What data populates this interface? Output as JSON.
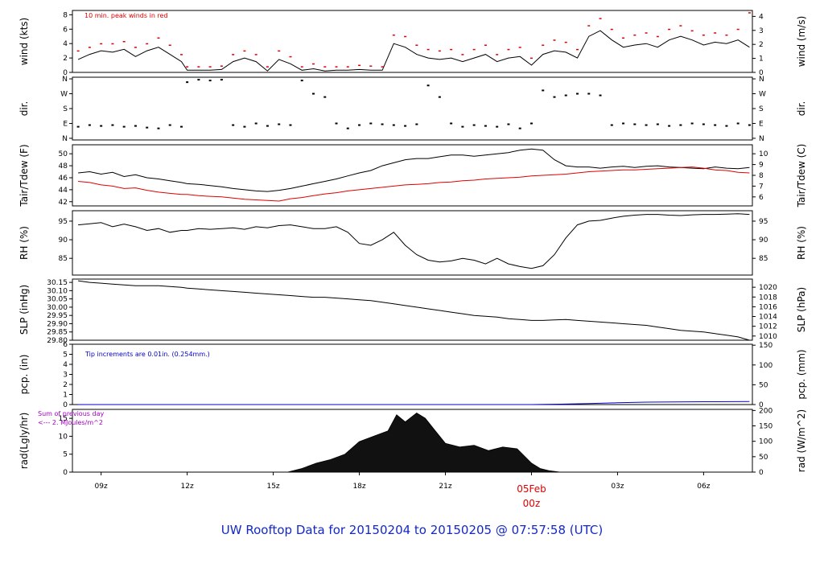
{
  "title": "UW Rooftop Data for 20150204  to  20150205 @ 07:57:58  (UTC)",
  "colors": {
    "black": "#000000",
    "red": "#e00000",
    "blue": "#0000d0",
    "purple": "#a000c0"
  },
  "x_axis": {
    "ticks": [
      "09z",
      "12z",
      "15z",
      "18z",
      "21z",
      "00z",
      "03z",
      "06z"
    ],
    "day_label": "05Feb",
    "day_sub": "00z"
  },
  "chart_data": [
    {
      "type": "line",
      "id": "wind",
      "ylabel": "wind (kts)",
      "ylabel_right": "wind (m/s)",
      "left_ticks": [
        "0",
        "2",
        "4",
        "6",
        "8"
      ],
      "right_ticks": [
        "0",
        "1",
        "2",
        "3",
        "4"
      ],
      "ylim": [
        0,
        8.6
      ],
      "annotation": "10 min. peak winds in red",
      "x": [
        8.2,
        8.6,
        9,
        9.4,
        9.8,
        10.2,
        10.6,
        11,
        11.4,
        11.8,
        12,
        12.4,
        12.8,
        13.2,
        13.6,
        14,
        14.4,
        14.8,
        15.2,
        15.6,
        16,
        16.4,
        16.8,
        17.2,
        17.6,
        18,
        18.4,
        18.8,
        19.2,
        19.6,
        20,
        20.4,
        20.8,
        21.2,
        21.6,
        22,
        22.4,
        22.8,
        23.2,
        23.6,
        24,
        24.4,
        24.8,
        25.2,
        25.6,
        26,
        26.4,
        26.8,
        27.2,
        27.6,
        28,
        28.4,
        28.8,
        29.2,
        29.6,
        30,
        30.4,
        30.8,
        31.2,
        31.6
      ],
      "series": [
        {
          "values": [
            1.8,
            2.5,
            3.0,
            2.8,
            3.2,
            2.2,
            3.0,
            3.5,
            2.5,
            1.5,
            0.3,
            0.3,
            0.3,
            0.4,
            1.5,
            2.0,
            1.5,
            0.2,
            1.8,
            1.2,
            0.3,
            0.5,
            0.2,
            0.3,
            0.3,
            0.4,
            0.3,
            0.3,
            4.0,
            3.5,
            2.5,
            2.0,
            1.8,
            2.0,
            1.5,
            2.0,
            2.5,
            1.5,
            2.0,
            2.2,
            1.0,
            2.5,
            3.0,
            2.8,
            2.0,
            5.0,
            5.8,
            4.5,
            3.5,
            3.8,
            4.0,
            3.5,
            4.5,
            5.0,
            4.5,
            3.8,
            4.2,
            4.0,
            4.5,
            3.5
          ]
        },
        {
          "values": [
            3.0,
            3.5,
            4.0,
            4.0,
            4.3,
            3.5,
            4.0,
            4.8,
            3.8,
            2.5,
            0.8,
            0.8,
            0.8,
            0.9,
            2.5,
            3.0,
            2.5,
            0.8,
            3.0,
            2.2,
            0.8,
            1.2,
            0.8,
            0.8,
            0.8,
            1.0,
            0.9,
            0.8,
            5.2,
            5.0,
            3.8,
            3.2,
            3.0,
            3.2,
            2.5,
            3.2,
            3.8,
            2.5,
            3.2,
            3.5,
            2.0,
            3.8,
            4.5,
            4.2,
            3.2,
            6.5,
            7.5,
            6.0,
            4.8,
            5.2,
            5.5,
            5.0,
            6.0,
            6.5,
            5.8,
            5.2,
            5.5,
            5.2,
            6.0,
            8.3
          ]
        }
      ]
    },
    {
      "type": "scatter",
      "id": "dir",
      "ylabel": "dir.",
      "ylabel_right": "dir.",
      "left_ticks": [
        "N",
        "E",
        "S",
        "W",
        "N"
      ],
      "right_ticks": [
        "N",
        "E",
        "S",
        "W",
        "N"
      ],
      "ylim": [
        -10,
        370
      ],
      "x": [
        8.2,
        8.6,
        9,
        9.4,
        9.8,
        10.2,
        10.6,
        11,
        11.4,
        11.8,
        12,
        12.4,
        12.8,
        13.2,
        13.6,
        14,
        14.4,
        14.8,
        15.2,
        15.6,
        16,
        16.4,
        16.8,
        17.2,
        17.6,
        18,
        18.4,
        18.8,
        19.2,
        19.6,
        20,
        20.4,
        20.8,
        21.2,
        21.6,
        22,
        22.4,
        22.8,
        23.2,
        23.6,
        24,
        24.4,
        24.8,
        25.2,
        25.6,
        26,
        26.4,
        26.8,
        27.2,
        27.6,
        28,
        28.4,
        28.8,
        29.2,
        29.6,
        30,
        30.4,
        30.8,
        31.2,
        31.6
      ],
      "series": [
        {
          "values": [
            70,
            80,
            75,
            80,
            70,
            75,
            65,
            60,
            80,
            70,
            340,
            355,
            350,
            355,
            80,
            70,
            90,
            75,
            85,
            80,
            350,
            270,
            250,
            90,
            60,
            80,
            90,
            85,
            80,
            75,
            85,
            320,
            250,
            90,
            70,
            80,
            75,
            70,
            85,
            60,
            90,
            290,
            250,
            260,
            270,
            270,
            260,
            80,
            90,
            85,
            80,
            85,
            75,
            80,
            90,
            85,
            80,
            75,
            90,
            80
          ]
        }
      ]
    },
    {
      "type": "line",
      "id": "temp",
      "ylabel": "Tair/Tdew (F)",
      "ylabel_right": "Tair/Tdew (C)",
      "left_ticks": [
        "42",
        "44",
        "46",
        "48",
        "50"
      ],
      "right_ticks": [
        "6",
        "7",
        "8",
        "9",
        "10"
      ],
      "ylim": [
        41.3,
        51.5
      ],
      "x": [
        8.2,
        8.6,
        9,
        9.4,
        9.8,
        10.2,
        10.6,
        11,
        11.4,
        11.8,
        12,
        12.4,
        12.8,
        13.2,
        13.6,
        14,
        14.4,
        14.8,
        15.2,
        15.6,
        16,
        16.4,
        16.8,
        17.2,
        17.6,
        18,
        18.4,
        18.8,
        19.2,
        19.6,
        20,
        20.4,
        20.8,
        21.2,
        21.6,
        22,
        22.4,
        22.8,
        23.2,
        23.6,
        24,
        24.4,
        24.8,
        25.2,
        25.6,
        26,
        26.4,
        26.8,
        27.2,
        27.6,
        28,
        28.4,
        28.8,
        29.2,
        29.6,
        30,
        30.4,
        30.8,
        31.2,
        31.6
      ],
      "series": [
        {
          "name": "Tair",
          "values": [
            46.8,
            47.0,
            46.6,
            46.9,
            46.2,
            46.5,
            46.0,
            45.8,
            45.5,
            45.2,
            45.0,
            44.9,
            44.7,
            44.5,
            44.2,
            44.0,
            43.8,
            43.7,
            43.9,
            44.2,
            44.6,
            45.0,
            45.4,
            45.8,
            46.3,
            46.8,
            47.2,
            48.0,
            48.5,
            49.0,
            49.2,
            49.2,
            49.5,
            49.8,
            49.8,
            49.6,
            49.8,
            50.0,
            50.2,
            50.6,
            50.8,
            50.6,
            49.0,
            48.0,
            47.8,
            47.8,
            47.6,
            47.8,
            47.9,
            47.7,
            47.9,
            48.0,
            47.8,
            47.7,
            47.6,
            47.5,
            47.8,
            47.6,
            47.5,
            47.7
          ]
        },
        {
          "name": "Tdew",
          "values": [
            45.4,
            45.2,
            44.8,
            44.6,
            44.2,
            44.3,
            43.9,
            43.6,
            43.4,
            43.2,
            43.2,
            43.0,
            42.9,
            42.8,
            42.6,
            42.4,
            42.3,
            42.2,
            42.1,
            42.5,
            42.7,
            43.0,
            43.3,
            43.5,
            43.8,
            44.0,
            44.2,
            44.4,
            44.6,
            44.8,
            44.9,
            45.0,
            45.2,
            45.3,
            45.5,
            45.6,
            45.8,
            45.9,
            46.0,
            46.1,
            46.3,
            46.4,
            46.5,
            46.6,
            46.8,
            47.0,
            47.1,
            47.2,
            47.3,
            47.3,
            47.4,
            47.5,
            47.6,
            47.7,
            47.8,
            47.6,
            47.3,
            47.2,
            46.9,
            46.8
          ]
        }
      ]
    },
    {
      "type": "line",
      "id": "rh",
      "ylabel": "RH (%)",
      "ylabel_right": "RH (%)",
      "left_ticks": [
        "85",
        "90",
        "95"
      ],
      "right_ticks": [
        "85",
        "90",
        "95"
      ],
      "ylim": [
        80.5,
        97.8
      ],
      "x": [
        8.2,
        8.6,
        9,
        9.4,
        9.8,
        10.2,
        10.6,
        11,
        11.4,
        11.8,
        12,
        12.4,
        12.8,
        13.2,
        13.6,
        14,
        14.4,
        14.8,
        15.2,
        15.6,
        16,
        16.4,
        16.8,
        17.2,
        17.6,
        18,
        18.4,
        18.8,
        19.2,
        19.6,
        20,
        20.4,
        20.8,
        21.2,
        21.6,
        22,
        22.4,
        22.8,
        23.2,
        23.6,
        24,
        24.4,
        24.8,
        25.2,
        25.6,
        26,
        26.4,
        26.8,
        27.2,
        27.6,
        28,
        28.4,
        28.8,
        29.2,
        29.6,
        30,
        30.4,
        30.8,
        31.2,
        31.6
      ],
      "series": [
        {
          "values": [
            94.0,
            94.3,
            94.6,
            93.5,
            94.2,
            93.5,
            92.5,
            93.0,
            92.0,
            92.5,
            92.5,
            93.0,
            92.8,
            93.0,
            93.2,
            92.8,
            93.5,
            93.2,
            93.8,
            94.0,
            93.5,
            93.0,
            93.0,
            93.5,
            92.0,
            89.0,
            88.5,
            90.0,
            92.0,
            88.5,
            86.0,
            84.5,
            84.0,
            84.3,
            85.0,
            84.5,
            83.5,
            85.0,
            83.5,
            82.8,
            82.3,
            83.0,
            86.0,
            90.5,
            94.0,
            95.0,
            95.2,
            95.8,
            96.3,
            96.6,
            96.8,
            96.8,
            96.6,
            96.5,
            96.7,
            96.8,
            96.8,
            96.9,
            97.0,
            96.8
          ]
        }
      ]
    },
    {
      "type": "line",
      "id": "slp",
      "ylabel": "SLP (inHg)",
      "ylabel_right": "SLP (hPa)",
      "left_ticks": [
        "29.80",
        "29.85",
        "29.90",
        "29.95",
        "30.00",
        "30.05",
        "30.10",
        "30.15"
      ],
      "right_ticks": [
        "1010",
        "1012",
        "1014",
        "1016",
        "1018",
        "1020"
      ],
      "ylim": [
        29.8,
        30.17
      ],
      "x": [
        8.2,
        8.6,
        9,
        9.4,
        9.8,
        10.2,
        10.6,
        11,
        11.4,
        11.8,
        12,
        12.4,
        12.8,
        13.2,
        13.6,
        14,
        14.4,
        14.8,
        15.2,
        15.6,
        16,
        16.4,
        16.8,
        17.2,
        17.6,
        18,
        18.4,
        18.8,
        19.2,
        19.6,
        20,
        20.4,
        20.8,
        21.2,
        21.6,
        22,
        22.4,
        22.8,
        23.2,
        23.6,
        24,
        24.4,
        24.8,
        25.2,
        25.6,
        26,
        26.4,
        26.8,
        27.2,
        27.6,
        28,
        28.4,
        28.8,
        29.2,
        29.6,
        30,
        30.4,
        30.8,
        31.2,
        31.6
      ],
      "series": [
        {
          "values": [
            30.16,
            30.15,
            30.145,
            30.14,
            30.135,
            30.13,
            30.13,
            30.13,
            30.125,
            30.12,
            30.115,
            30.11,
            30.105,
            30.1,
            30.095,
            30.09,
            30.085,
            30.08,
            30.075,
            30.07,
            30.065,
            30.06,
            30.06,
            30.055,
            30.05,
            30.045,
            30.04,
            30.03,
            30.02,
            30.01,
            30.0,
            29.99,
            29.98,
            29.97,
            29.96,
            29.95,
            29.945,
            29.94,
            29.93,
            29.925,
            29.92,
            29.92,
            29.923,
            29.925,
            29.92,
            29.915,
            29.91,
            29.905,
            29.9,
            29.895,
            29.89,
            29.88,
            29.87,
            29.86,
            29.855,
            29.85,
            29.84,
            29.83,
            29.82,
            29.8
          ]
        }
      ]
    },
    {
      "type": "area",
      "id": "pcp",
      "ylabel": "pcp. (in)",
      "ylabel_right": "pcp. (mm)",
      "left_ticks": [
        "0",
        "1",
        "2",
        "3",
        "4",
        "5",
        "6"
      ],
      "right_ticks": [
        "0",
        "50",
        "100",
        "150"
      ],
      "ylim": [
        0,
        6
      ],
      "annotation": "Tip increments are 0.01in. (0.254mm.)",
      "x": [
        8.2,
        24.0,
        25.0,
        26.0,
        27.0,
        28.0,
        29.0,
        30.0,
        31.6
      ],
      "series": [
        {
          "values": [
            0,
            0,
            0.04,
            0.1,
            0.18,
            0.24,
            0.26,
            0.28,
            0.3
          ]
        }
      ]
    },
    {
      "type": "area",
      "id": "rad",
      "ylabel": "rad(Lgly/hr)",
      "ylabel_right": "rad (W/m^2)",
      "left_ticks": [
        "0",
        "5",
        "10",
        "15"
      ],
      "right_ticks": [
        "0",
        "50",
        "100",
        "150",
        "200"
      ],
      "ylim": [
        0,
        17.5
      ],
      "annotation": "Sum of previous day",
      "annotation2": "<--- 2. MJoules/m^2",
      "x": [
        8.2,
        15.5,
        16.0,
        16.5,
        17.0,
        17.5,
        18.0,
        18.5,
        19.0,
        19.3,
        19.6,
        20.0,
        20.3,
        20.6,
        21.0,
        21.5,
        22.0,
        22.5,
        23.0,
        23.5,
        24.0,
        24.3,
        24.6,
        25.0,
        31.6
      ],
      "series": [
        {
          "values": [
            0,
            0,
            1.0,
            2.5,
            3.5,
            5.0,
            8.5,
            10.0,
            11.5,
            16.0,
            14.0,
            16.5,
            15.0,
            12.0,
            8.0,
            7.0,
            7.5,
            6.0,
            7.0,
            6.5,
            2.5,
            1.0,
            0.4,
            0,
            0
          ]
        }
      ]
    }
  ]
}
